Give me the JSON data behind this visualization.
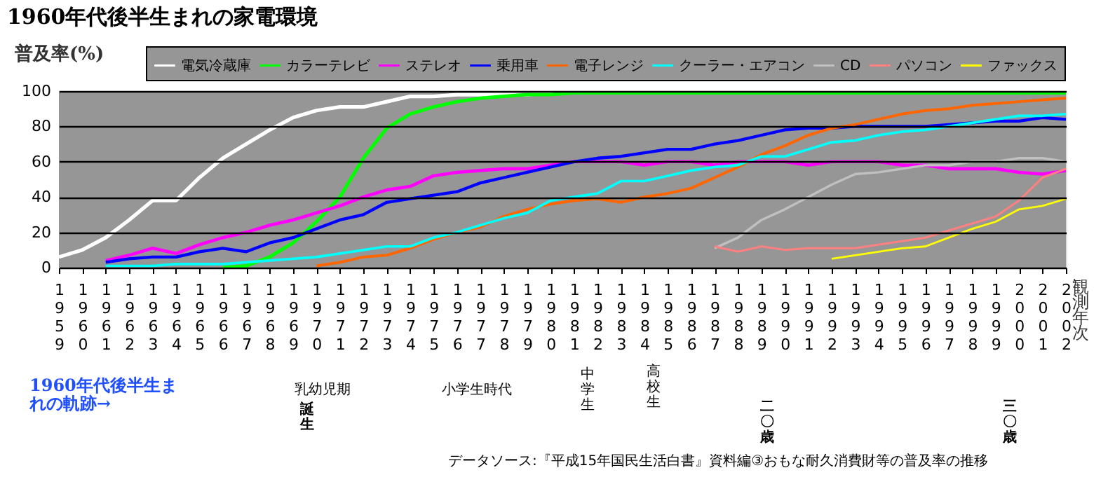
{
  "chart_data": {
    "type": "line",
    "title": "1960年代後半生まれの家電環境",
    "ylabel": "普及率(%)",
    "xlabel": "観測年次",
    "categories": [
      "1959",
      "1960",
      "1961",
      "1962",
      "1963",
      "1964",
      "1965",
      "1966",
      "1967",
      "1968",
      "1969",
      "1970",
      "1971",
      "1972",
      "1973",
      "1974",
      "1975",
      "1976",
      "1977",
      "1978",
      "1979",
      "1980",
      "1981",
      "1982",
      "1983",
      "1984",
      "1985",
      "1986",
      "1987",
      "1988",
      "1989",
      "1990",
      "1991",
      "1992",
      "1993",
      "1994",
      "1995",
      "1996",
      "1997",
      "1998",
      "1999",
      "2000",
      "2001",
      "2002"
    ],
    "ylim": [
      0,
      100
    ],
    "yticks": [
      0,
      20,
      40,
      60,
      80,
      100
    ],
    "grid": "y",
    "legend": "top",
    "line_style": "solid",
    "marker": "none",
    "series": [
      {
        "name": "電気冷蔵庫",
        "color": "#ffffff",
        "values": [
          6,
          10,
          17,
          27,
          38,
          38,
          51,
          62,
          70,
          78,
          85,
          89,
          91,
          91,
          94,
          97,
          97,
          98,
          98,
          98,
          98,
          99,
          99,
          99,
          99,
          99,
          99,
          99,
          99,
          99,
          99,
          99,
          99,
          99,
          99,
          99,
          99,
          99,
          99,
          99,
          99,
          99,
          99,
          99
        ]
      },
      {
        "name": "カラーテレビ",
        "color": "#00ff00",
        "values": [
          null,
          null,
          null,
          null,
          null,
          null,
          null,
          0,
          1,
          6,
          14,
          26,
          40,
          62,
          79,
          87,
          91,
          94,
          96,
          97,
          98,
          98,
          99,
          99,
          99,
          99,
          99,
          99,
          99,
          99,
          99,
          99,
          99,
          99,
          99,
          99,
          99,
          99,
          99,
          99,
          99,
          99,
          99,
          99
        ]
      },
      {
        "name": "ステレオ",
        "color": "#ff00ff",
        "values": [
          null,
          null,
          4,
          7,
          11,
          8,
          13,
          17,
          20,
          24,
          27,
          31,
          35,
          40,
          44,
          46,
          52,
          54,
          55,
          56,
          56,
          58,
          60,
          60,
          60,
          58,
          60,
          60,
          58,
          60,
          60,
          60,
          58,
          60,
          60,
          60,
          58,
          58,
          56,
          56,
          56,
          54,
          53,
          55
        ]
      },
      {
        "name": "乗用車",
        "color": "#0000ff",
        "values": [
          null,
          null,
          3,
          5,
          6,
          6,
          9,
          11,
          9,
          14,
          17,
          22,
          27,
          30,
          37,
          39,
          41,
          43,
          48,
          51,
          54,
          57,
          60,
          62,
          63,
          65,
          67,
          67,
          70,
          72,
          75,
          78,
          79,
          79,
          80,
          80,
          80,
          80,
          81,
          82,
          83,
          83,
          85,
          84
        ]
      },
      {
        "name": "電子レンジ",
        "color": "#ff6600",
        "values": [
          null,
          null,
          null,
          null,
          null,
          null,
          null,
          null,
          null,
          null,
          null,
          1,
          3,
          6,
          7,
          11,
          16,
          20,
          23,
          29,
          33,
          36,
          38,
          39,
          37,
          40,
          42,
          45,
          51,
          57,
          64,
          69,
          75,
          79,
          81,
          84,
          87,
          89,
          90,
          92,
          93,
          94,
          95,
          96
        ]
      },
      {
        "name": "クーラー・エアコン",
        "color": "#00ffff",
        "values": [
          null,
          null,
          1,
          1,
          1,
          2,
          2,
          2,
          3,
          4,
          5,
          6,
          8,
          10,
          12,
          12,
          17,
          20,
          24,
          28,
          31,
          38,
          40,
          42,
          49,
          49,
          52,
          55,
          57,
          58,
          63,
          63,
          67,
          71,
          72,
          75,
          77,
          78,
          80,
          82,
          84,
          86,
          86,
          87
        ]
      },
      {
        "name": "CD",
        "color": "#c0c0c0",
        "values": [
          null,
          null,
          null,
          null,
          null,
          null,
          null,
          null,
          null,
          null,
          null,
          null,
          null,
          null,
          null,
          null,
          null,
          null,
          null,
          null,
          null,
          null,
          null,
          null,
          null,
          null,
          null,
          null,
          11,
          17,
          27,
          33,
          40,
          47,
          53,
          54,
          56,
          58,
          58,
          60,
          60,
          62,
          62,
          60
        ]
      },
      {
        "name": "パソコン",
        "color": "#ff8080",
        "values": [
          null,
          null,
          null,
          null,
          null,
          null,
          null,
          null,
          null,
          null,
          null,
          null,
          null,
          null,
          null,
          null,
          null,
          null,
          null,
          null,
          null,
          null,
          null,
          null,
          null,
          null,
          null,
          null,
          12,
          9,
          12,
          10,
          11,
          11,
          11,
          13,
          15,
          17,
          21,
          25,
          29,
          38,
          51,
          56
        ]
      },
      {
        "name": "ファックス",
        "color": "#ffff00",
        "values": [
          null,
          null,
          null,
          null,
          null,
          null,
          null,
          null,
          null,
          null,
          null,
          null,
          null,
          null,
          null,
          null,
          null,
          null,
          null,
          null,
          null,
          null,
          null,
          null,
          null,
          null,
          null,
          null,
          null,
          null,
          null,
          null,
          null,
          5,
          7,
          9,
          11,
          12,
          17,
          22,
          26,
          33,
          35,
          39
        ]
      }
    ],
    "annotations": [
      "1960年代後半生まれの軌跡→",
      "乳幼児期",
      "小学生時代",
      "中学生",
      "高校生",
      "誕生",
      "二〇歳",
      "三〇歳",
      "データソース:『平成15年国民生活白書』資料編③おもな耐久消費財等の普及率の推移"
    ]
  }
}
